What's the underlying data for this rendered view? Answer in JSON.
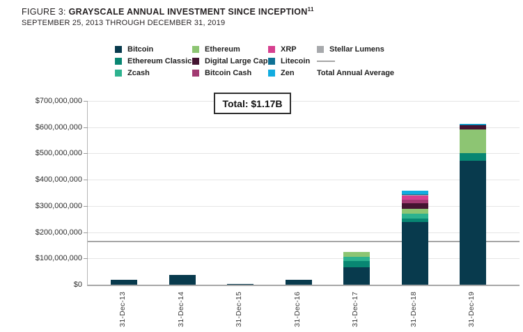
{
  "header": {
    "figure_label": "FIGURE 3:",
    "title": "GRAYSCALE ANNUAL INVESTMENT SINCE INCEPTION",
    "footnote_marker": "11",
    "subtitle": "SEPTEMBER 25, 2013 THROUGH DECEMBER 31, 2019"
  },
  "legend": {
    "columns": [
      {
        "items": [
          {
            "type": "swatch",
            "series": "bitcoin",
            "label": "Bitcoin"
          },
          {
            "type": "swatch",
            "series": "ethereum_classic",
            "label": "Ethereum Classic"
          },
          {
            "type": "swatch",
            "series": "zcash",
            "label": "Zcash"
          }
        ]
      },
      {
        "items": [
          {
            "type": "swatch",
            "series": "ethereum",
            "label": "Ethereum"
          },
          {
            "type": "swatch",
            "series": "digital_large_cap",
            "label": "Digital Large Cap"
          },
          {
            "type": "swatch",
            "series": "bitcoin_cash",
            "label": "Bitcoin Cash"
          }
        ]
      },
      {
        "items": [
          {
            "type": "swatch",
            "series": "xrp",
            "label": "XRP"
          },
          {
            "type": "swatch",
            "series": "litecoin",
            "label": "Litecoin"
          },
          {
            "type": "swatch",
            "series": "zen",
            "label": "Zen"
          }
        ]
      },
      {
        "items": [
          {
            "type": "swatch",
            "series": "stellar_lumens",
            "label": "Stellar Lumens"
          },
          {
            "type": "line",
            "label": ""
          },
          {
            "type": "text",
            "label": "Total Annual Average"
          }
        ]
      }
    ]
  },
  "chart_data": {
    "type": "bar",
    "stacked": true,
    "title": "GRAYSCALE ANNUAL INVESTMENT SINCE INCEPTION",
    "subtitle": "SEPTEMBER 25, 2013 THROUGH DECEMBER 31, 2019",
    "total_label": "Total: $1.17B",
    "values_unit": "USD millions",
    "categories": [
      "31-Dec-13",
      "31-Dec-14",
      "31-Dec-15",
      "31-Dec-16",
      "31-Dec-17",
      "31-Dec-18",
      "31-Dec-19"
    ],
    "y_axis": {
      "min": 0,
      "max": 700,
      "tick_step": 100,
      "tick_labels": [
        "$0",
        "$100,000,000",
        "$200,000,000",
        "$300,000,000",
        "$400,000,000",
        "$500,000,000",
        "$600,000,000",
        "$700,000,000"
      ]
    },
    "series": [
      {
        "key": "bitcoin",
        "name": "Bitcoin",
        "color": "#083A4D",
        "values": [
          18,
          38,
          4,
          18,
          67,
          238,
          472
        ]
      },
      {
        "key": "ethereum_classic",
        "name": "Ethereum Classic",
        "color": "#088672",
        "values": [
          0,
          0,
          0,
          0,
          24,
          14,
          28
        ]
      },
      {
        "key": "zcash",
        "name": "Zcash",
        "color": "#2DB28F",
        "values": [
          0,
          0,
          0,
          0,
          15,
          19,
          0
        ]
      },
      {
        "key": "ethereum",
        "name": "Ethereum",
        "color": "#8DC573",
        "values": [
          0,
          0,
          0,
          0,
          20,
          19,
          92
        ]
      },
      {
        "key": "digital_large_cap",
        "name": "Digital Large Cap",
        "color": "#441431",
        "values": [
          0,
          0,
          0,
          0,
          0,
          20,
          15
        ]
      },
      {
        "key": "bitcoin_cash",
        "name": "Bitcoin Cash",
        "color": "#A23A72",
        "values": [
          0,
          0,
          0,
          0,
          0,
          13,
          0
        ]
      },
      {
        "key": "xrp",
        "name": "XRP",
        "color": "#D6408F",
        "values": [
          0,
          0,
          0,
          0,
          0,
          19,
          0
        ]
      },
      {
        "key": "stellar_lumens",
        "name": "Stellar Lumens",
        "color": "#A7A9AC",
        "values": [
          0,
          0,
          0,
          0,
          0,
          1,
          0
        ]
      },
      {
        "key": "litecoin",
        "name": "Litecoin",
        "color": "#0E7194",
        "values": [
          0,
          0,
          0,
          0,
          0,
          3,
          2
        ]
      },
      {
        "key": "zen",
        "name": "Zen",
        "color": "#12ACE0",
        "values": [
          0,
          0,
          0,
          0,
          0,
          13,
          4
        ]
      }
    ],
    "totals": [
      18,
      38,
      4,
      18,
      126,
      359,
      613
    ],
    "average_line": {
      "label": "Total Annual Average",
      "value": 167,
      "color": "#A6A6A6"
    },
    "grid": true,
    "legend_position": "top"
  }
}
